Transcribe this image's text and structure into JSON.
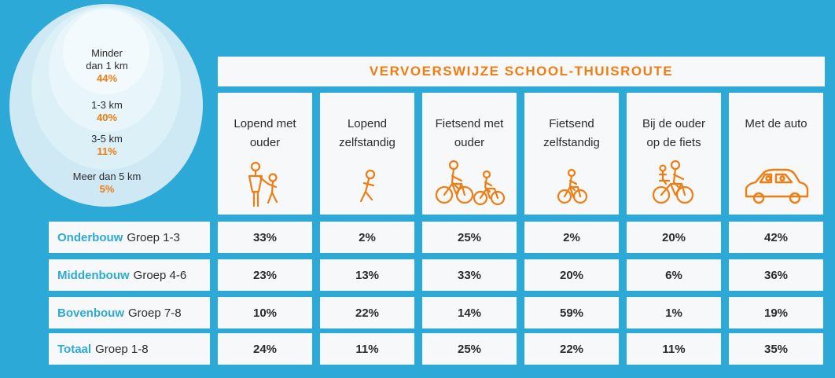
{
  "distance": [
    {
      "label": "Minder dan 1 km",
      "line1": "Minder",
      "line2": "dan 1 km",
      "pct": "44%"
    },
    {
      "label": "1-3 km",
      "line1": "1-3 km",
      "line2": "",
      "pct": "40%"
    },
    {
      "label": "3-5 km",
      "line1": "3-5 km",
      "line2": "",
      "pct": "11%"
    },
    {
      "label": "Meer dan 5 km",
      "line1": "Meer dan 5 km",
      "line2": "",
      "pct": "5%"
    }
  ],
  "title": "VERVOERSWIJZE SCHOOL-THUISROUTE",
  "modes": [
    {
      "label": "Lopend met\nouder",
      "icon": "walking-with-parent-icon"
    },
    {
      "label": "Lopend\nzelfstandig",
      "icon": "walking-alone-icon"
    },
    {
      "label": "Fietsend met\nouder",
      "icon": "cycling-with-parent-icon"
    },
    {
      "label": "Fietsend\nzelfstandig",
      "icon": "cycling-alone-icon"
    },
    {
      "label": "Bij de ouder\nop de fiets",
      "icon": "on-parent-bike-icon"
    },
    {
      "label": "Met de auto",
      "icon": "car-icon"
    }
  ],
  "rows": [
    {
      "strong": "Onderbouw",
      "rest": "Groep 1-3",
      "values": [
        "33%",
        "2%",
        "25%",
        "2%",
        "20%",
        "42%"
      ]
    },
    {
      "strong": "Middenbouw",
      "rest": "Groep 4-6",
      "values": [
        "23%",
        "13%",
        "33%",
        "20%",
        "6%",
        "36%"
      ]
    },
    {
      "strong": "Bovenbouw",
      "rest": "Groep 7-8",
      "values": [
        "10%",
        "22%",
        "14%",
        "59%",
        "1%",
        "19%"
      ]
    },
    {
      "strong": "Totaal",
      "rest": "Groep 1-8",
      "values": [
        "24%",
        "11%",
        "25%",
        "22%",
        "11%",
        "35%"
      ]
    }
  ],
  "colors": {
    "background": "#2ca9d6",
    "accent": "#ef7d12",
    "panel": "#f7f8fa",
    "group": "#2ca9d6"
  },
  "chart_data": {
    "type": "table",
    "title": "VERVOERSWIJZE SCHOOL-THUISROUTE",
    "columns": [
      "Lopend met ouder",
      "Lopend zelfstandig",
      "Fietsend met ouder",
      "Fietsend zelfstandig",
      "Bij de ouder op de fiets",
      "Met de auto"
    ],
    "row_labels": [
      "Onderbouw Groep 1-3",
      "Middenbouw Groep 4-6",
      "Bovenbouw Groep 7-8",
      "Totaal Groep 1-8"
    ],
    "values": [
      [
        33,
        2,
        25,
        2,
        20,
        42
      ],
      [
        23,
        13,
        33,
        20,
        6,
        36
      ],
      [
        10,
        22,
        14,
        59,
        1,
        19
      ],
      [
        24,
        11,
        25,
        22,
        11,
        35
      ]
    ],
    "distance_breakdown": {
      "categories": [
        "Minder dan 1 km",
        "1-3 km",
        "3-5 km",
        "Meer dan 5 km"
      ],
      "values": [
        44,
        40,
        11,
        5
      ]
    }
  }
}
